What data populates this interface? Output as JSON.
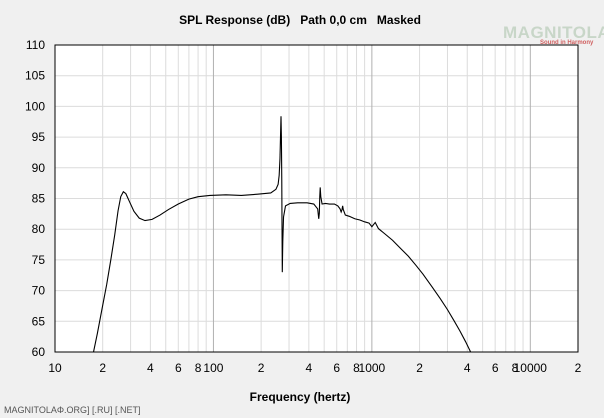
{
  "chart_data": {
    "type": "line",
    "title": "SPL Response (dB)   Path 0,0 cm   Masked",
    "xlabel": "Frequency (hertz)",
    "ylabel": "",
    "x_scale": "log",
    "xlim": [
      10,
      20000
    ],
    "ylim": [
      60,
      110
    ],
    "grid": true,
    "x_ticks": [
      {
        "value": 10,
        "label": "10"
      },
      {
        "value": 20,
        "label": "2"
      },
      {
        "value": 40,
        "label": "4"
      },
      {
        "value": 60,
        "label": "6"
      },
      {
        "value": 80,
        "label": "8"
      },
      {
        "value": 100,
        "label": "100"
      },
      {
        "value": 200,
        "label": "2"
      },
      {
        "value": 400,
        "label": "4"
      },
      {
        "value": 600,
        "label": "6"
      },
      {
        "value": 800,
        "label": "8"
      },
      {
        "value": 1000,
        "label": "1000"
      },
      {
        "value": 2000,
        "label": "2"
      },
      {
        "value": 4000,
        "label": "4"
      },
      {
        "value": 6000,
        "label": "6"
      },
      {
        "value": 8000,
        "label": "8"
      },
      {
        "value": 10000,
        "label": "10000"
      },
      {
        "value": 20000,
        "label": "2"
      }
    ],
    "y_ticks": [
      60,
      65,
      70,
      75,
      80,
      85,
      90,
      95,
      100,
      105,
      110
    ],
    "series": [
      {
        "color": "#000000",
        "points": [
          [
            17.5,
            60
          ],
          [
            18.5,
            63
          ],
          [
            19.8,
            67
          ],
          [
            21.2,
            71
          ],
          [
            22.5,
            75
          ],
          [
            23.8,
            79
          ],
          [
            25,
            83
          ],
          [
            26,
            85.3
          ],
          [
            27,
            86.1
          ],
          [
            28,
            85.8
          ],
          [
            29.5,
            84.5
          ],
          [
            31.5,
            82.9
          ],
          [
            34,
            81.8
          ],
          [
            37,
            81.4
          ],
          [
            41,
            81.6
          ],
          [
            46,
            82.3
          ],
          [
            52,
            83.2
          ],
          [
            60,
            84.1
          ],
          [
            70,
            84.9
          ],
          [
            80,
            85.3
          ],
          [
            95,
            85.5
          ],
          [
            120,
            85.6
          ],
          [
            150,
            85.5
          ],
          [
            190,
            85.7
          ],
          [
            230,
            85.9
          ],
          [
            248,
            86.5
          ],
          [
            256,
            87.3
          ],
          [
            260,
            88.8
          ],
          [
            263,
            91.5
          ],
          [
            265,
            95
          ],
          [
            267,
            98.4
          ],
          [
            268.5,
            95
          ],
          [
            270,
            88
          ],
          [
            271,
            80
          ],
          [
            272,
            73
          ],
          [
            274,
            78
          ],
          [
            277,
            82
          ],
          [
            285,
            83.8
          ],
          [
            305,
            84.2
          ],
          [
            340,
            84.3
          ],
          [
            390,
            84.3
          ],
          [
            430,
            84.1
          ],
          [
            455,
            83.3
          ],
          [
            462,
            81.7
          ],
          [
            466,
            82.6
          ],
          [
            469,
            85.3
          ],
          [
            472,
            86.8
          ],
          [
            476,
            85.3
          ],
          [
            485,
            84.1
          ],
          [
            510,
            84.2
          ],
          [
            540,
            84.1
          ],
          [
            580,
            84.1
          ],
          [
            610,
            83.8
          ],
          [
            630,
            83.3
          ],
          [
            640,
            82.8
          ],
          [
            648,
            83.2
          ],
          [
            654,
            83.8
          ],
          [
            660,
            83.2
          ],
          [
            680,
            82.3
          ],
          [
            720,
            82.1
          ],
          [
            780,
            81.7
          ],
          [
            840,
            81.5
          ],
          [
            900,
            81.2
          ],
          [
            960,
            81
          ],
          [
            1000,
            80.4
          ],
          [
            1050,
            81.1
          ],
          [
            1100,
            80.1
          ],
          [
            1200,
            79.3
          ],
          [
            1350,
            78.2
          ],
          [
            1500,
            77
          ],
          [
            1700,
            75.6
          ],
          [
            1900,
            74.1
          ],
          [
            2100,
            72.7
          ],
          [
            2400,
            70.6
          ],
          [
            2700,
            68.7
          ],
          [
            3000,
            66.9
          ],
          [
            3300,
            65.1
          ],
          [
            3600,
            63.4
          ],
          [
            3900,
            61.7
          ],
          [
            4200,
            60
          ]
        ]
      }
    ]
  },
  "logo": {
    "main": "MAGNITOLA",
    "sub": "Sound in Harmony"
  },
  "footer": "MAGNITOLAΦ.ORG] [.RU] [.NET]"
}
